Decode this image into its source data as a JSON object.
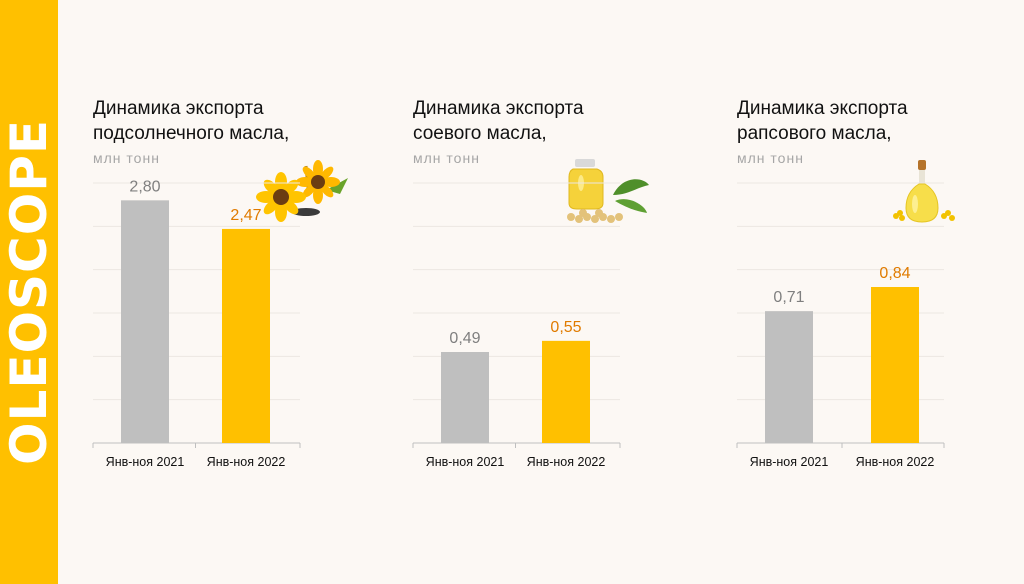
{
  "brand": "OLEOSCOPE",
  "colors": {
    "band": "#FFC000",
    "bar_2021": "#BFBFBF",
    "bar_2022": "#FFC000",
    "label_2021": "#7F7F7F",
    "label_2022": "#E07B00",
    "grid": "#ECE7E2",
    "axis": "#BFBFBF"
  },
  "chart_data": [
    {
      "type": "bar",
      "title_line1": "Динамика экспорта",
      "title_line2": "подсолнечного масла,",
      "unit": "млн тонн",
      "icon": "sunflower-icon",
      "categories": [
        "Янв-ноя 2021",
        "Янв-ноя 2022"
      ],
      "values": [
        2.8,
        2.47
      ],
      "value_labels": [
        "2,80",
        "2,47"
      ],
      "ylim": [
        0,
        3.0
      ]
    },
    {
      "type": "bar",
      "title_line1": "Динамика экспорта",
      "title_line2": "соевого масла,",
      "unit": "млн тонн",
      "icon": "soybean-oil-icon",
      "categories": [
        "Янв-ноя 2021",
        "Янв-ноя 2022"
      ],
      "values": [
        0.49,
        0.55
      ],
      "value_labels": [
        "0,49",
        "0,55"
      ],
      "ylim": [
        0,
        1.4
      ]
    },
    {
      "type": "bar",
      "title_line1": "Динамика экспорта",
      "title_line2": "рапсового масла,",
      "unit": "млн тонн",
      "icon": "rapeseed-oil-icon",
      "categories": [
        "Янв-ноя 2021",
        "Янв-ноя 2022"
      ],
      "values": [
        0.71,
        0.84
      ],
      "value_labels": [
        "0,71",
        "0,84"
      ],
      "ylim": [
        0,
        1.4
      ]
    }
  ]
}
